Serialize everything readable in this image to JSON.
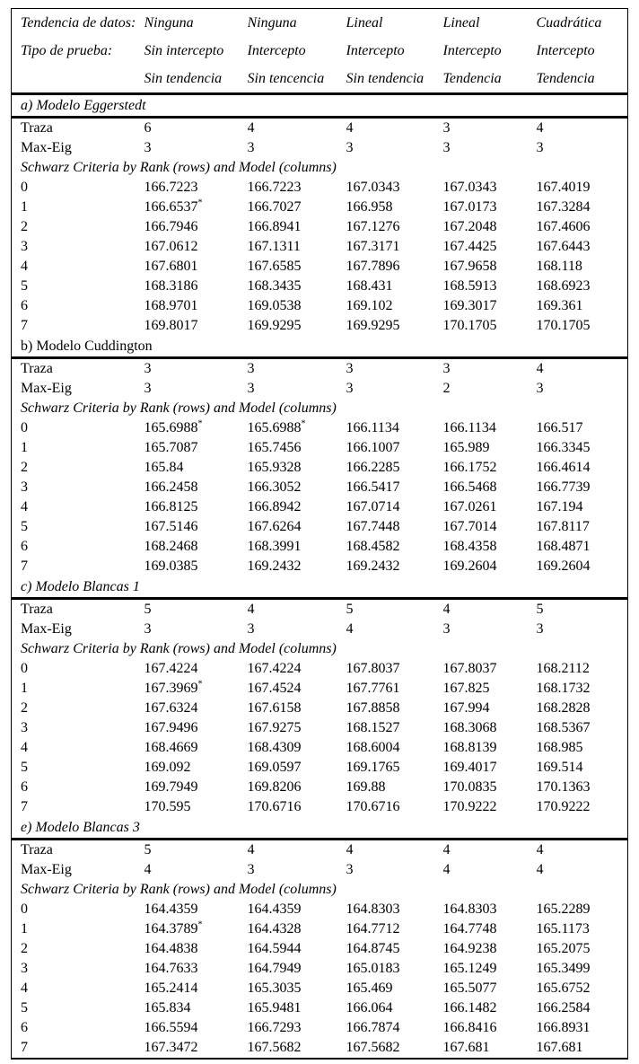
{
  "colors": {
    "text": "#000000",
    "background": "#ffffff",
    "rule": "#000000"
  },
  "table": {
    "header": {
      "rows": [
        {
          "label": "Tendencia de datos:",
          "values": [
            "Ninguna",
            "Ninguna",
            "Lineal",
            "Lineal",
            "Cuadrática"
          ]
        },
        {
          "label": "Tipo de prueba:",
          "values": [
            "Sin intercepto",
            "Intercepto",
            "Intercepto",
            "Intercepto",
            "Intercepto"
          ]
        },
        {
          "label": "",
          "values": [
            "Sin tendencia",
            "Sin tencencia",
            "Sin tendencia",
            "Tendencia",
            "Tendencia"
          ]
        }
      ]
    },
    "labels": {
      "traza": "Traza",
      "max_eig": "Max-Eig",
      "schwarz": "Schwarz Criteria by Rank (rows) and Model (columns)"
    },
    "sections": [
      {
        "title": "a) Modelo Eggerstedt",
        "title_italic": true,
        "traza": [
          "6",
          "4",
          "4",
          "3",
          "4"
        ],
        "max_eig": [
          "3",
          "3",
          "3",
          "3",
          "3"
        ],
        "ranks": [
          {
            "rank": "0",
            "values": [
              "166.7223",
              "166.7223",
              "167.0343",
              "167.0343",
              "167.4019"
            ]
          },
          {
            "rank": "1",
            "values": [
              "166.6537*",
              "166.7027",
              "166.958",
              "167.0173",
              "167.3284"
            ]
          },
          {
            "rank": "2",
            "values": [
              "166.7946",
              "166.8941",
              "167.1276",
              "167.2048",
              "167.4606"
            ]
          },
          {
            "rank": "3",
            "values": [
              "167.0612",
              "167.1311",
              "167.3171",
              "167.4425",
              "167.6443"
            ]
          },
          {
            "rank": "4",
            "values": [
              "167.6801",
              "167.6585",
              "167.7896",
              "167.9658",
              "168.118"
            ]
          },
          {
            "rank": "5",
            "values": [
              "168.3186",
              "168.3435",
              "168.431",
              "168.5913",
              "168.6923"
            ]
          },
          {
            "rank": "6",
            "values": [
              "168.9701",
              "169.0538",
              "169.102",
              "169.3017",
              "169.361"
            ]
          },
          {
            "rank": "7",
            "values": [
              "169.8017",
              "169.9295",
              "169.9295",
              "170.1705",
              "170.1705"
            ]
          }
        ]
      },
      {
        "title": "b) Modelo Cuddington",
        "title_italic": false,
        "traza": [
          "3",
          "3",
          "3",
          "3",
          "4"
        ],
        "max_eig": [
          "3",
          "3",
          "3",
          "2",
          "3"
        ],
        "ranks": [
          {
            "rank": "0",
            "values": [
              "165.6988*",
              "165.6988*",
              "166.1134",
              "166.1134",
              "166.517"
            ]
          },
          {
            "rank": "1",
            "values": [
              "165.7087",
              "165.7456",
              "166.1007",
              "165.989",
              "166.3345"
            ]
          },
          {
            "rank": "2",
            "values": [
              "165.84",
              "165.9328",
              "166.2285",
              "166.1752",
              "166.4614"
            ]
          },
          {
            "rank": "3",
            "values": [
              "166.2458",
              "166.3052",
              "166.5417",
              "166.5468",
              "166.7739"
            ]
          },
          {
            "rank": "4",
            "values": [
              "166.8125",
              "166.8942",
              "167.0714",
              "167.0261",
              "167.194"
            ]
          },
          {
            "rank": "5",
            "values": [
              "167.5146",
              "167.6264",
              "167.7448",
              "167.7014",
              "167.8117"
            ]
          },
          {
            "rank": "6",
            "values": [
              "168.2468",
              "168.3991",
              "168.4582",
              "168.4358",
              "168.4871"
            ]
          },
          {
            "rank": "7",
            "values": [
              "169.0385",
              "169.2432",
              "169.2432",
              "169.2604",
              "169.2604"
            ]
          }
        ]
      },
      {
        "title": "c) Modelo Blancas 1",
        "title_italic": true,
        "traza": [
          "5",
          "4",
          "5",
          "4",
          "5"
        ],
        "max_eig": [
          "3",
          "3",
          "4",
          "3",
          "3"
        ],
        "ranks": [
          {
            "rank": "0",
            "values": [
              "167.4224",
              "167.4224",
              "167.8037",
              "167.8037",
              "168.2112"
            ]
          },
          {
            "rank": "1",
            "values": [
              "167.3969*",
              "167.4524",
              "167.7761",
              "167.825",
              "168.1732"
            ]
          },
          {
            "rank": "2",
            "values": [
              "167.6324",
              "167.6158",
              "167.8858",
              "167.994",
              "168.2828"
            ]
          },
          {
            "rank": "3",
            "values": [
              "167.9496",
              "167.9275",
              "168.1527",
              "168.3068",
              "168.5367"
            ]
          },
          {
            "rank": "4",
            "values": [
              "168.4669",
              "168.4309",
              "168.6004",
              "168.8139",
              "168.985"
            ]
          },
          {
            "rank": "5",
            "values": [
              "169.092",
              "169.0597",
              "169.1765",
              "169.4017",
              "169.514"
            ]
          },
          {
            "rank": "6",
            "values": [
              "169.7949",
              "169.8206",
              "169.88",
              "170.0835",
              "170.1363"
            ]
          },
          {
            "rank": "7",
            "values": [
              "170.595",
              "170.6716",
              "170.6716",
              "170.9222",
              "170.9222"
            ]
          }
        ]
      },
      {
        "title": "e) Modelo Blancas 3",
        "title_italic": true,
        "traza": [
          "5",
          "4",
          "4",
          "4",
          "4"
        ],
        "max_eig": [
          "4",
          "3",
          "3",
          "4",
          "4"
        ],
        "ranks": [
          {
            "rank": "0",
            "values": [
              "164.4359",
              "164.4359",
              "164.8303",
              "164.8303",
              "165.2289"
            ]
          },
          {
            "rank": "1",
            "values": [
              "164.3789*",
              "164.4328",
              "164.7712",
              "164.7748",
              "165.1173"
            ]
          },
          {
            "rank": "2",
            "values": [
              "164.4838",
              "164.5944",
              "164.8745",
              "164.9238",
              "165.2075"
            ]
          },
          {
            "rank": "3",
            "values": [
              "164.7633",
              "164.7949",
              "165.0183",
              "165.1249",
              "165.3499"
            ]
          },
          {
            "rank": "4",
            "values": [
              "165.2414",
              "165.3035",
              "165.469",
              "165.5077",
              "165.6752"
            ]
          },
          {
            "rank": "5",
            "values": [
              "165.834",
              "165.9481",
              "166.064",
              "166.1482",
              "166.2584"
            ]
          },
          {
            "rank": "6",
            "values": [
              "166.5594",
              "166.7293",
              "166.7874",
              "166.8416",
              "166.8931"
            ]
          },
          {
            "rank": "7",
            "values": [
              "167.3472",
              "167.5682",
              "167.5682",
              "167.681",
              "167.681"
            ]
          }
        ]
      }
    ]
  }
}
